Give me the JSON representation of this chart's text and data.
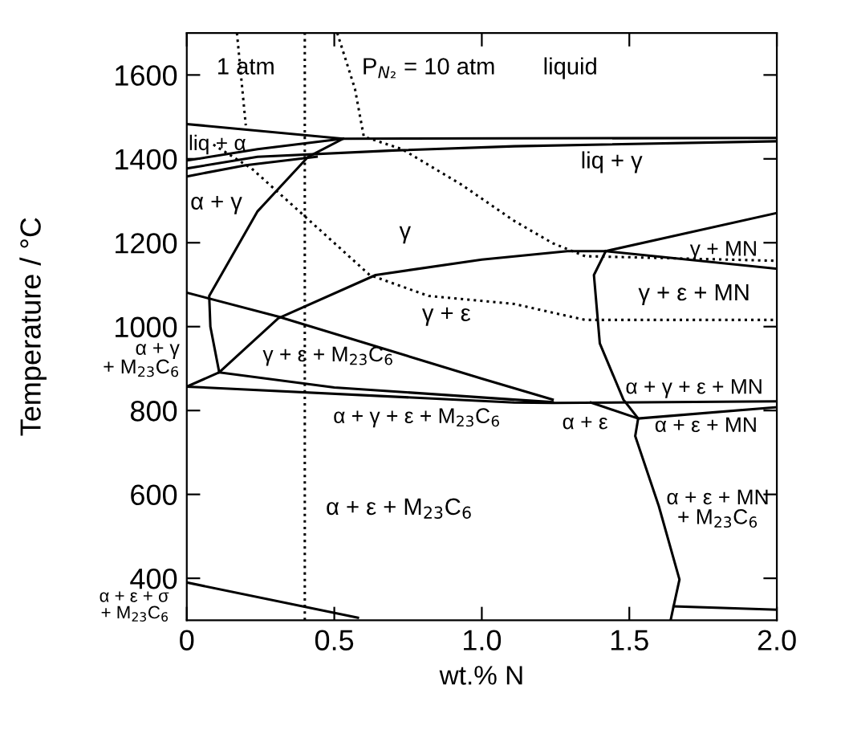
{
  "chart_data": {
    "type": "line",
    "xlabel": "wt.% N",
    "ylabel": "Temperature / °C",
    "xlim": [
      0,
      2.0
    ],
    "ylim": [
      300,
      1700
    ],
    "xticks": [
      0,
      0.5,
      {
        "value": 1,
        "label": "1.0"
      },
      1.5,
      {
        "value": 2,
        "label": "2.0"
      }
    ],
    "yticks": [
      400,
      600,
      800,
      1000,
      1200,
      1400,
      1600
    ],
    "grid": false,
    "marker": "none",
    "line_style": "solid",
    "series": [
      {
        "color": "#000000",
        "x": [
          0,
          0.53,
          2.0
        ],
        "values": [
          1483,
          1448,
          1450
        ]
      },
      {
        "color": "#000000",
        "x": [
          0,
          0.24,
          0.53
        ],
        "values": [
          1396,
          1423,
          1448
        ]
      },
      {
        "color": "#000000",
        "x": [
          0,
          0.24,
          0.7,
          1.11,
          2.0
        ],
        "values": [
          1377,
          1405,
          1420,
          1430,
          1442
        ]
      },
      {
        "color": "#000000",
        "x": [
          0,
          0.2,
          0.44
        ],
        "values": [
          1358,
          1385,
          1405
        ]
      },
      {
        "color": "#000000",
        "x": [
          0.53,
          0.41,
          0.24,
          0.076,
          0.08,
          0.11
        ],
        "values": [
          1448,
          1404,
          1275,
          1073,
          1000,
          891
        ]
      },
      {
        "color": "#000000",
        "x": [
          0,
          0.31,
          1.0,
          1.24
        ],
        "values": [
          1081,
          1024,
          876,
          826
        ]
      },
      {
        "color": "#000000",
        "x": [
          0,
          0.11,
          0.31,
          0.64,
          1.0,
          1.29,
          1.42,
          2.0
        ],
        "values": [
          857,
          891,
          1020,
          1123,
          1160,
          1180,
          1180,
          1271
        ]
      },
      {
        "color": "#000000",
        "x": [
          1.42,
          2.0
        ],
        "values": [
          1180,
          1138
        ]
      },
      {
        "color": "#000000",
        "x": [
          1.42,
          1.38,
          1.4,
          1.48,
          1.53,
          1.52,
          1.6,
          1.67,
          1.65,
          1.64
        ],
        "values": [
          1180,
          1123,
          960,
          826,
          781,
          739,
          572,
          397,
          333,
          300
        ]
      },
      {
        "color": "#000000",
        "x": [
          1.65,
          2.0
        ],
        "values": [
          333,
          325
        ]
      },
      {
        "color": "#000000",
        "x": [
          0,
          1.11,
          1.24,
          2.0
        ],
        "values": [
          857,
          819,
          818,
          822
        ]
      },
      {
        "color": "#000000",
        "x": [
          0.11,
          0.5,
          1.11,
          1.24
        ],
        "values": [
          891,
          855,
          826,
          820
        ]
      },
      {
        "color": "#000000",
        "x": [
          1.37,
          1.53,
          2.0
        ],
        "values": [
          819,
          781,
          808
        ]
      },
      {
        "color": "#000000",
        "x": [
          0,
          0.58
        ],
        "values": [
          390,
          306
        ]
      },
      {
        "color": "#000000",
        "line_style": "dotted",
        "x": [
          0.4,
          0.4
        ],
        "values": [
          300,
          1700
        ]
      },
      {
        "color": "#000000",
        "line_style": "dotted",
        "x": [
          0.17,
          0.2
        ],
        "values": [
          1700,
          1480
        ]
      },
      {
        "color": "#000000",
        "line_style": "dotted",
        "x": [
          0.09,
          0.22,
          0.4,
          0.62,
          0.82,
          1.11,
          1.35,
          2.0
        ],
        "values": [
          1434,
          1377,
          1263,
          1123,
          1073,
          1054,
          1016,
          1016
        ]
      },
      {
        "color": "#000000",
        "line_style": "dotted",
        "x": [
          0.51,
          0.57,
          0.6,
          0.73,
          0.93,
          1.11,
          1.24,
          1.35,
          2.0
        ],
        "values": [
          1700,
          1567,
          1453,
          1423,
          1339,
          1252,
          1199,
          1168,
          1157
        ]
      }
    ],
    "annotations": [
      "1 atm",
      "P$_{N₂}$ = 10 atm",
      "liquid",
      "liq + α",
      "α + γ",
      "γ",
      "liq + γ",
      "γ + MN",
      "γ + ε + MN",
      "γ + ε",
      "α + γ\n+ M$_{23}$C$_{6}$",
      "γ + ε + M$_{23}$C$_{6}$",
      "α + γ + ε + M$_{23}$C$_{6}$",
      "α + γ + ε + MN",
      "α + ε",
      "α + ε + MN",
      "α + ε + M$_{23}$C$_{6}$",
      "α + ε + MN\n+ M$_{23}$C$_{6}$",
      "α + ε + σ\n+ M$_{23}$C$_{6}$"
    ]
  }
}
